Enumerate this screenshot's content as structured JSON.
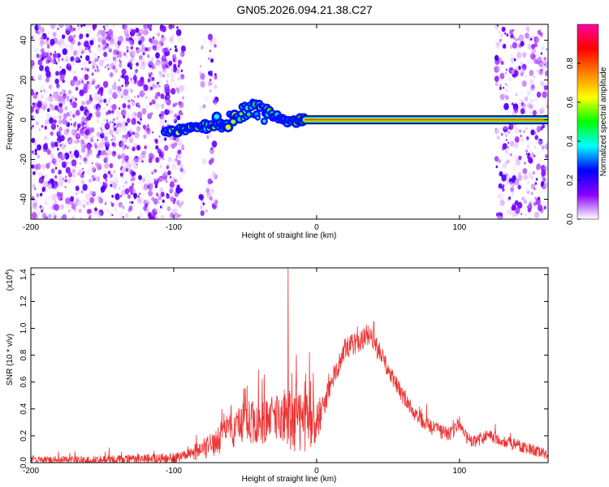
{
  "title": "GN05.2026.094.21.38.C27",
  "chart_data": [
    {
      "type": "heatmap",
      "name": "spectrogram",
      "xlabel": "Height of straight line (km)",
      "ylabel": "Frequency (Hz)",
      "xlim": [
        -200,
        162
      ],
      "ylim": [
        -50,
        48
      ],
      "xticks": [
        -200,
        -100,
        0,
        100
      ],
      "xtick_labels": [
        "-200",
        "-100",
        "0",
        "100"
      ],
      "yticks": [
        -40,
        -20,
        0,
        20,
        40
      ],
      "ytick_labels": [
        "-40",
        "-20",
        "0",
        "20",
        "40"
      ],
      "colorbar": {
        "label": "Normalized spectral amplitude",
        "range": [
          0,
          1
        ],
        "ticks": [
          0,
          0.2,
          0.4,
          0.6,
          0.8
        ],
        "tick_labels": [
          "0.0",
          "0.2",
          "0.4",
          "0.6",
          "0.8"
        ],
        "colors": [
          "#ffffff",
          "#8a00ff",
          "#0000ff",
          "#00ffff",
          "#00ff00",
          "#ffff00",
          "#ff8000",
          "#ff0000",
          "#ff00a0"
        ]
      },
      "noise_regions": [
        {
          "x_range": [
            -200,
            -93
          ],
          "density": "high"
        },
        {
          "x_range": [
            -82,
            -70
          ],
          "density": "low"
        },
        {
          "x_range": [
            125,
            162
          ],
          "density": "medium"
        }
      ],
      "signal_track": {
        "points": [
          [
            -106,
            -6
          ],
          [
            -95,
            -5
          ],
          [
            -85,
            -4
          ],
          [
            -72,
            -3
          ],
          [
            -62,
            0
          ],
          [
            -52,
            4
          ],
          [
            -45,
            6
          ],
          [
            -38,
            3
          ],
          [
            -30,
            2
          ],
          [
            -20,
            -1
          ],
          [
            -12,
            0
          ],
          [
            -8,
            0
          ],
          [
            0,
            0
          ],
          [
            50,
            0
          ],
          [
            100,
            0
          ],
          [
            162,
            0
          ]
        ],
        "strong_from_x": -8,
        "strong_to_x": 162
      }
    },
    {
      "type": "line",
      "name": "snr",
      "xlabel": "Height of straight line (km)",
      "ylabel": "SNR (10 * v/v)",
      "scale_label": "(x10",
      "scale_exponent": "4",
      "xlim": [
        -200,
        162
      ],
      "ylim": [
        0,
        1.45
      ],
      "xticks": [
        -200,
        -100,
        0,
        100
      ],
      "xtick_labels": [
        "-200",
        "-100",
        "0",
        "100"
      ],
      "yticks": [
        0,
        0.2,
        0.4,
        0.6,
        0.8,
        1.0,
        1.2,
        1.4
      ],
      "ytick_labels": [
        "0.0",
        "0.2",
        "0.4",
        "0.6",
        "0.8",
        "1.0",
        "1.2",
        "1.4"
      ],
      "color": "#ee3333",
      "envelope": {
        "x": [
          -200,
          -150,
          -110,
          -95,
          -85,
          -80,
          -75,
          -70,
          -60,
          -50,
          -40,
          -30,
          -20,
          -18,
          -10,
          0,
          10,
          20,
          30,
          35,
          40,
          50,
          60,
          70,
          80,
          90,
          95,
          100,
          105,
          110,
          120,
          140,
          162
        ],
        "y": [
          0.02,
          0.02,
          0.03,
          0.04,
          0.08,
          0.1,
          0.12,
          0.15,
          0.25,
          0.3,
          0.3,
          0.32,
          0.35,
          0.3,
          0.3,
          0.28,
          0.6,
          0.85,
          0.9,
          0.95,
          0.9,
          0.7,
          0.5,
          0.35,
          0.26,
          0.22,
          0.22,
          0.3,
          0.18,
          0.16,
          0.2,
          0.13,
          0.06
        ]
      },
      "noise_amplitude": {
        "x": [
          -200,
          -90,
          -80,
          -70,
          -60,
          -30,
          -10,
          0,
          10,
          40,
          60,
          100,
          162
        ],
        "y": [
          0.025,
          0.04,
          0.08,
          0.1,
          0.14,
          0.18,
          0.24,
          0.15,
          0.08,
          0.08,
          0.06,
          0.05,
          0.04
        ]
      },
      "spikes": [
        {
          "x": -67,
          "y": 0.3
        },
        {
          "x": -50,
          "y": 0.55
        },
        {
          "x": -38,
          "y": 0.62
        },
        {
          "x": -20,
          "y": 1.45
        },
        {
          "x": -12,
          "y": 0.5
        },
        {
          "x": -5,
          "y": 0.82
        },
        {
          "x": 40,
          "y": 1.05
        }
      ]
    }
  ]
}
